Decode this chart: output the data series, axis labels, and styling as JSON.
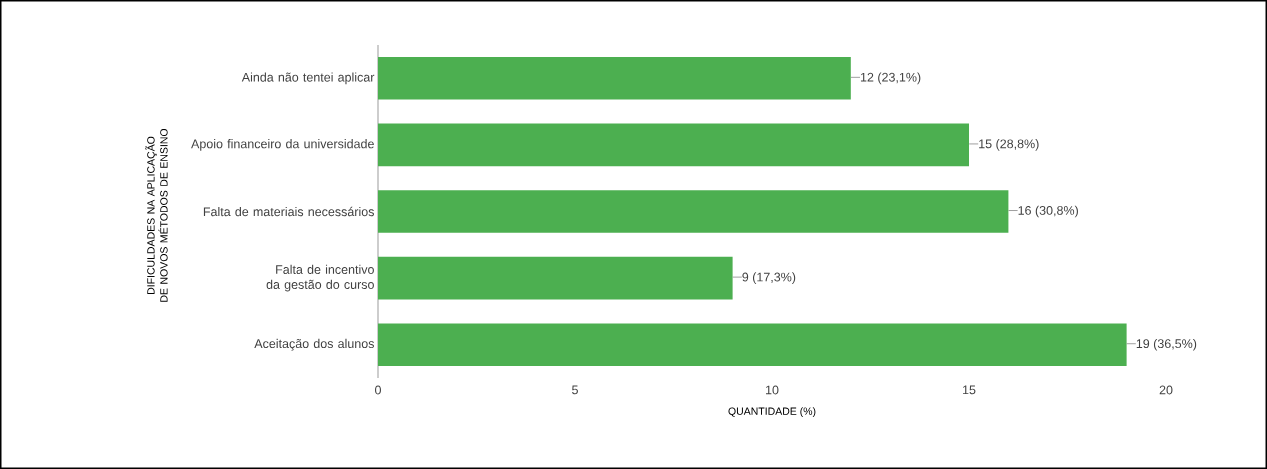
{
  "chart_data": {
    "type": "bar",
    "orientation": "horizontal",
    "xlabel": "QUANTIDADE (%)",
    "ylabel": "DIFICULDADES NA APLICAÇÃO DE NOVOS MÉTODOS DE ENSINO",
    "categories": [
      "Ainda não tentei aplicar",
      "Apoio financeiro da universidade",
      "Falta de materiais necessários",
      "Falta de incentivo da gestão do curso",
      "Aceitação dos alunos"
    ],
    "values": [
      12,
      15,
      16,
      9,
      19
    ],
    "value_labels": [
      "12 (23,1%)",
      "15 (28,8%)",
      "16 (30,8%)",
      "9 (17,3%)",
      "19 (36,5%)"
    ],
    "color": "#4caf50",
    "xlim": [
      0,
      20
    ],
    "xticks": [
      0,
      5,
      10,
      15,
      20
    ]
  }
}
